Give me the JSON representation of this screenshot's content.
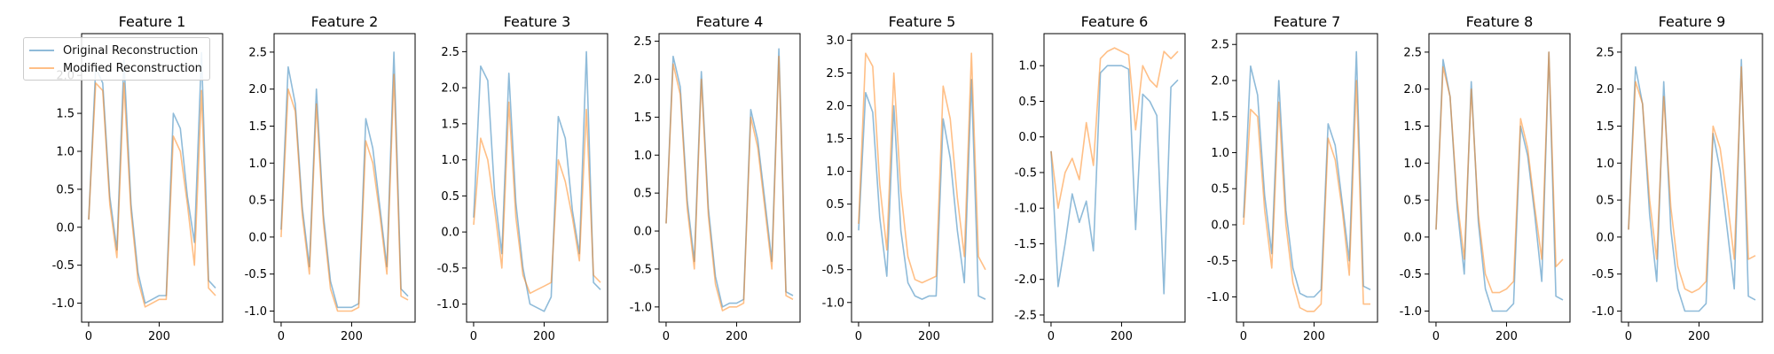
{
  "chart_data": {
    "type": "line",
    "legend": {
      "placement": "upper-left of first panel",
      "entries": [
        "Original Reconstruction",
        "Modified Reconstruction"
      ]
    },
    "colors": {
      "original": "#1f77b4",
      "modified": "#ff7f0e"
    },
    "x": [
      0,
      20,
      40,
      60,
      80,
      100,
      120,
      140,
      160,
      180,
      200,
      220,
      240,
      260,
      280,
      300,
      320,
      340,
      360
    ],
    "panels": [
      {
        "title": "Feature 1",
        "xticks": [
          0,
          200
        ],
        "xlim": [
          -20,
          380
        ],
        "yticks": [
          -1.0,
          -0.5,
          0.0,
          0.5,
          1.0,
          1.5,
          2.0
        ],
        "ylim": [
          -1.25,
          2.55
        ],
        "series": [
          {
            "name": "Original Reconstruction",
            "values": [
              0.1,
              2.1,
              1.9,
              0.4,
              -0.3,
              2.2,
              0.3,
              -0.6,
              -1.0,
              -0.95,
              -0.9,
              -0.9,
              1.5,
              1.3,
              0.4,
              -0.2,
              2.3,
              -0.7,
              -0.8
            ]
          },
          {
            "name": "Modified Reconstruction",
            "values": [
              0.1,
              1.9,
              1.8,
              0.3,
              -0.4,
              1.9,
              0.2,
              -0.7,
              -1.05,
              -1.0,
              -0.95,
              -0.95,
              1.2,
              1.0,
              0.3,
              -0.5,
              1.8,
              -0.8,
              -0.9
            ]
          }
        ]
      },
      {
        "title": "Feature 2",
        "xticks": [
          0,
          200
        ],
        "xlim": [
          -20,
          380
        ],
        "yticks": [
          -1.0,
          -0.5,
          0.0,
          0.5,
          1.0,
          1.5,
          2.0,
          2.5
        ],
        "ylim": [
          -1.15,
          2.75
        ],
        "series": [
          {
            "name": "Original Reconstruction",
            "values": [
              0.1,
              2.3,
              1.8,
              0.4,
              -0.4,
              2.0,
              0.3,
              -0.6,
              -0.95,
              -0.95,
              -0.95,
              -0.9,
              1.6,
              1.2,
              0.4,
              -0.4,
              2.5,
              -0.7,
              -0.8
            ]
          },
          {
            "name": "Modified Reconstruction",
            "values": [
              0.0,
              2.0,
              1.7,
              0.3,
              -0.5,
              1.8,
              0.2,
              -0.7,
              -1.0,
              -1.0,
              -1.0,
              -0.95,
              1.3,
              1.0,
              0.3,
              -0.5,
              2.2,
              -0.8,
              -0.85
            ]
          }
        ]
      },
      {
        "title": "Feature 3",
        "xticks": [
          0,
          200
        ],
        "xlim": [
          -20,
          380
        ],
        "yticks": [
          -1.0,
          -0.5,
          0.0,
          0.5,
          1.0,
          1.5,
          2.0,
          2.5
        ],
        "ylim": [
          -1.25,
          2.75
        ],
        "series": [
          {
            "name": "Original Reconstruction",
            "values": [
              0.2,
              2.3,
              2.1,
              0.5,
              -0.3,
              2.2,
              0.4,
              -0.5,
              -1.0,
              -1.05,
              -1.1,
              -0.9,
              1.6,
              1.3,
              0.3,
              -0.3,
              2.5,
              -0.7,
              -0.8
            ]
          },
          {
            "name": "Modified Reconstruction",
            "values": [
              0.1,
              1.3,
              1.0,
              0.3,
              -0.5,
              1.8,
              0.2,
              -0.6,
              -0.85,
              -0.8,
              -0.75,
              -0.7,
              1.0,
              0.7,
              0.2,
              -0.4,
              1.7,
              -0.6,
              -0.7
            ]
          }
        ]
      },
      {
        "title": "Feature 4",
        "xticks": [
          0,
          200
        ],
        "xlim": [
          -20,
          380
        ],
        "yticks": [
          -1.0,
          -0.5,
          0.0,
          0.5,
          1.0,
          1.5,
          2.0,
          2.5
        ],
        "ylim": [
          -1.2,
          2.6
        ],
        "series": [
          {
            "name": "Original Reconstruction",
            "values": [
              0.1,
              2.3,
              1.9,
              0.4,
              -0.4,
              2.1,
              0.3,
              -0.6,
              -1.0,
              -0.95,
              -0.95,
              -0.9,
              1.6,
              1.2,
              0.4,
              -0.4,
              2.4,
              -0.8,
              -0.85
            ]
          },
          {
            "name": "Modified Reconstruction",
            "values": [
              0.1,
              2.2,
              1.8,
              0.3,
              -0.5,
              2.0,
              0.2,
              -0.7,
              -1.05,
              -1.0,
              -1.0,
              -0.95,
              1.5,
              1.1,
              0.3,
              -0.5,
              2.3,
              -0.85,
              -0.9
            ]
          }
        ]
      },
      {
        "title": "Feature 5",
        "xticks": [
          0,
          200
        ],
        "xlim": [
          -20,
          380
        ],
        "yticks": [
          -1.0,
          -0.5,
          0.0,
          0.5,
          1.0,
          1.5,
          2.0,
          2.5,
          3.0
        ],
        "ylim": [
          -1.3,
          3.1
        ],
        "series": [
          {
            "name": "Original Reconstruction",
            "values": [
              0.1,
              2.2,
              1.9,
              0.3,
              -0.6,
              2.0,
              0.1,
              -0.7,
              -0.9,
              -0.95,
              -0.9,
              -0.9,
              1.8,
              1.2,
              0.1,
              -0.7,
              2.4,
              -0.9,
              -0.95
            ]
          },
          {
            "name": "Modified Reconstruction",
            "values": [
              0.2,
              2.8,
              2.6,
              0.8,
              -0.2,
              2.5,
              0.7,
              -0.3,
              -0.65,
              -0.7,
              -0.65,
              -0.6,
              2.3,
              1.8,
              0.6,
              -0.3,
              2.8,
              -0.3,
              -0.5
            ]
          }
        ]
      },
      {
        "title": "Feature 6",
        "xticks": [
          0,
          200
        ],
        "xlim": [
          -20,
          380
        ],
        "yticks": [
          -2.5,
          -2.0,
          -1.5,
          -1.0,
          -0.5,
          0.0,
          0.5,
          1.0
        ],
        "ylim": [
          -2.6,
          1.45
        ],
        "series": [
          {
            "name": "Original Reconstruction",
            "values": [
              -0.2,
              -2.1,
              -1.5,
              -0.8,
              -1.2,
              -0.9,
              -1.6,
              0.9,
              1.0,
              1.0,
              1.0,
              0.95,
              -1.3,
              0.6,
              0.5,
              0.3,
              -2.2,
              0.7,
              0.8
            ]
          },
          {
            "name": "Modified Reconstruction",
            "values": [
              -0.2,
              -1.0,
              -0.5,
              -0.3,
              -0.6,
              0.2,
              -0.4,
              1.1,
              1.2,
              1.25,
              1.2,
              1.15,
              0.1,
              1.0,
              0.8,
              0.7,
              1.2,
              1.1,
              1.2
            ]
          }
        ]
      },
      {
        "title": "Feature 7",
        "xticks": [
          0,
          200
        ],
        "xlim": [
          -20,
          380
        ],
        "yticks": [
          -1.0,
          -0.5,
          0.0,
          0.5,
          1.0,
          1.5,
          2.0,
          2.5
        ],
        "ylim": [
          -1.35,
          2.65
        ],
        "series": [
          {
            "name": "Original Reconstruction",
            "values": [
              0.1,
              2.2,
              1.8,
              0.4,
              -0.4,
              2.0,
              0.2,
              -0.6,
              -0.95,
              -1.0,
              -1.0,
              -0.9,
              1.4,
              1.1,
              0.3,
              -0.5,
              2.4,
              -0.85,
              -0.9
            ]
          },
          {
            "name": "Modified Reconstruction",
            "values": [
              0.0,
              1.6,
              1.5,
              0.2,
              -0.6,
              1.7,
              0.0,
              -0.8,
              -1.15,
              -1.2,
              -1.2,
              -1.1,
              1.2,
              0.9,
              0.2,
              -0.7,
              2.0,
              -1.1,
              -1.1
            ]
          }
        ]
      },
      {
        "title": "Feature 8",
        "xticks": [
          0,
          200
        ],
        "xlim": [
          -20,
          380
        ],
        "yticks": [
          -1.0,
          -0.5,
          0.0,
          0.5,
          1.0,
          1.5,
          2.0,
          2.5
        ],
        "ylim": [
          -1.15,
          2.75
        ],
        "series": [
          {
            "name": "Original Reconstruction",
            "values": [
              0.1,
              2.4,
              1.9,
              0.4,
              -0.5,
              2.1,
              0.2,
              -0.7,
              -1.0,
              -1.0,
              -1.0,
              -0.9,
              1.5,
              1.1,
              0.3,
              -0.6,
              2.5,
              -0.8,
              -0.85
            ]
          },
          {
            "name": "Modified Reconstruction",
            "values": [
              0.1,
              2.3,
              1.9,
              0.5,
              -0.3,
              2.0,
              0.3,
              -0.5,
              -0.75,
              -0.75,
              -0.7,
              -0.6,
              1.6,
              1.2,
              0.4,
              -0.3,
              2.5,
              -0.4,
              -0.3
            ]
          }
        ]
      },
      {
        "title": "Feature 9",
        "xticks": [
          0,
          200
        ],
        "xlim": [
          -20,
          380
        ],
        "yticks": [
          -1.0,
          -0.5,
          0.0,
          0.5,
          1.0,
          1.5,
          2.0,
          2.5
        ],
        "ylim": [
          -1.15,
          2.75
        ],
        "series": [
          {
            "name": "Original Reconstruction",
            "values": [
              0.1,
              2.3,
              1.8,
              0.3,
              -0.6,
              2.1,
              0.1,
              -0.7,
              -1.0,
              -1.0,
              -1.0,
              -0.9,
              1.4,
              0.9,
              0.1,
              -0.7,
              2.4,
              -0.8,
              -0.85
            ]
          },
          {
            "name": "Modified Reconstruction",
            "values": [
              0.1,
              2.1,
              1.8,
              0.5,
              -0.3,
              1.9,
              0.4,
              -0.4,
              -0.7,
              -0.75,
              -0.7,
              -0.6,
              1.5,
              1.2,
              0.5,
              -0.3,
              2.3,
              -0.3,
              -0.25
            ]
          }
        ]
      }
    ]
  }
}
